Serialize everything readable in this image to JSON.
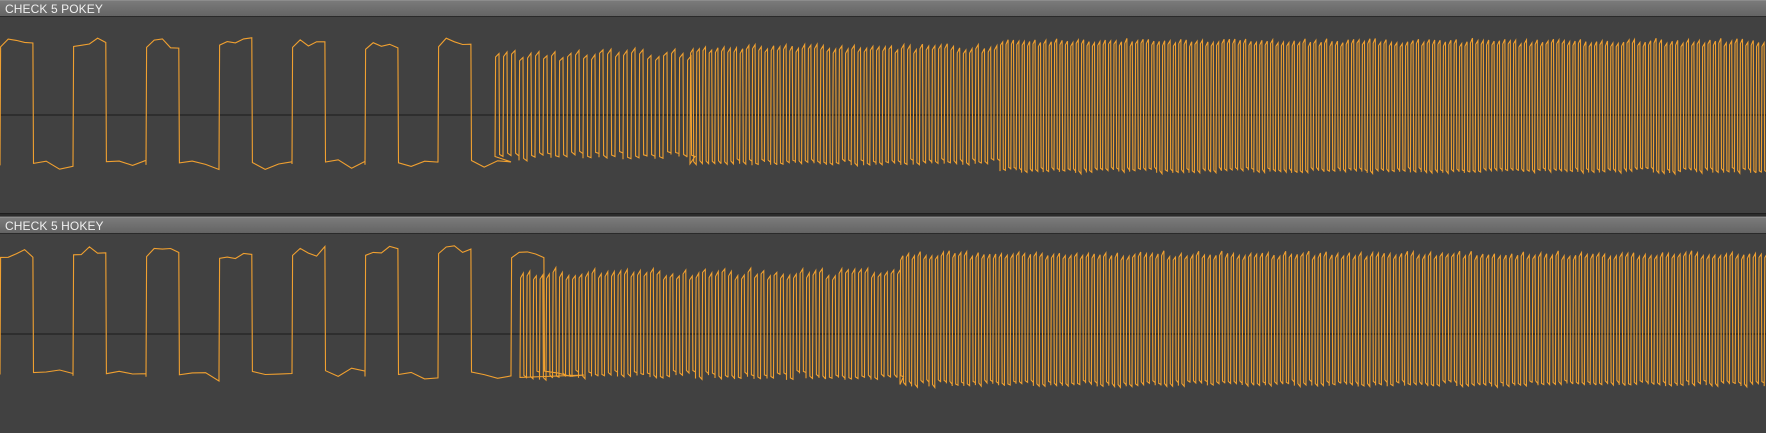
{
  "colors": {
    "waveform": "#f0a030",
    "centerline": "#1a1a1a",
    "track_bg": "#414141"
  },
  "tracks": [
    {
      "name": "CHECK 5 POKEY"
    },
    {
      "name": "CHECK 5 HOKEY"
    }
  ]
}
